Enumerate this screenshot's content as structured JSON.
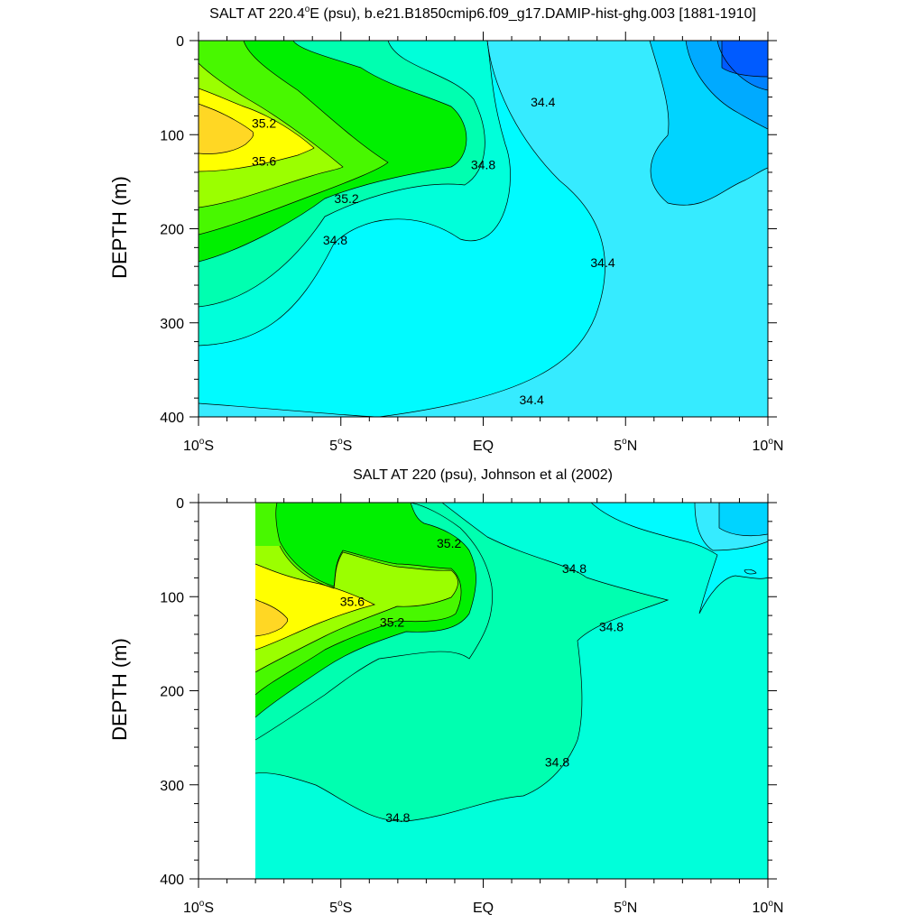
{
  "chart_data": [
    {
      "type": "contour",
      "title": "SALT AT 220.4°E (psu), b.e21.B1850cmip6.f09_g17.DAMIP-hist-ghg.003 [1881-1910]",
      "title_parts": {
        "pre": "SALT AT 220.4",
        "sup": "o",
        "post": "E (psu), b.e21.B1850cmip6.f09_g17.DAMIP-hist-ghg.003 [1881-1910]"
      },
      "xlabel": "",
      "ylabel": "DEPTH (m)",
      "xlim": [
        -10,
        10
      ],
      "ylim": [
        0,
        400
      ],
      "y_inverted": true,
      "x_ticks": [
        {
          "value": -10,
          "pre": "10",
          "sup": "o",
          "post": "S"
        },
        {
          "value": -5,
          "pre": "5",
          "sup": "o",
          "post": "S"
        },
        {
          "value": 0,
          "pre": "EQ",
          "sup": "",
          "post": ""
        },
        {
          "value": 5,
          "pre": "5",
          "sup": "o",
          "post": "N"
        },
        {
          "value": 10,
          "pre": "10",
          "sup": "o",
          "post": "N"
        }
      ],
      "y_ticks": [
        "0",
        "100",
        "200",
        "300",
        "400"
      ],
      "contour_labels": [
        {
          "text": "35.2",
          "lat": -7.7,
          "depth": 88
        },
        {
          "text": "35.6",
          "lat": -7.7,
          "depth": 128
        },
        {
          "text": "35.2",
          "lat": -4.8,
          "depth": 168
        },
        {
          "text": "34.8",
          "lat": -5.2,
          "depth": 212
        },
        {
          "text": "34.8",
          "lat": 0.0,
          "depth": 132
        },
        {
          "text": "34.4",
          "lat": 2.1,
          "depth": 65
        },
        {
          "text": "34.4",
          "lat": 4.2,
          "depth": 236
        },
        {
          "text": "34.4",
          "lat": 1.7,
          "depth": 382
        }
      ]
    },
    {
      "type": "contour",
      "title": "SALT AT 220 (psu), Johnson et al (2002)",
      "title_parts": {
        "pre": "SALT AT 220 (psu), Johnson et al (2002)",
        "sup": "",
        "post": ""
      },
      "xlabel": "",
      "ylabel": "DEPTH (m)",
      "xlim": [
        -10,
        10
      ],
      "ylim": [
        0,
        400
      ],
      "y_inverted": true,
      "x_ticks": [
        {
          "value": -10,
          "pre": "10",
          "sup": "o",
          "post": "S"
        },
        {
          "value": -5,
          "pre": "5",
          "sup": "o",
          "post": "S"
        },
        {
          "value": 0,
          "pre": "EQ",
          "sup": "",
          "post": ""
        },
        {
          "value": 5,
          "pre": "5",
          "sup": "o",
          "post": "N"
        },
        {
          "value": 10,
          "pre": "10",
          "sup": "o",
          "post": "N"
        }
      ],
      "y_ticks": [
        "0",
        "100",
        "200",
        "300",
        "400"
      ],
      "contour_labels": [
        {
          "text": "35.2",
          "lat": -1.2,
          "depth": 43
        },
        {
          "text": "35.6",
          "lat": -4.6,
          "depth": 105
        },
        {
          "text": "35.2",
          "lat": -3.2,
          "depth": 127
        },
        {
          "text": "34.8",
          "lat": 3.2,
          "depth": 70
        },
        {
          "text": "34.8",
          "lat": 4.5,
          "depth": 132
        },
        {
          "text": "34.8",
          "lat": 2.6,
          "depth": 276
        },
        {
          "text": "34.8",
          "lat": -3.0,
          "depth": 335
        }
      ]
    }
  ],
  "colors": {
    "c_33_8": "#005bff",
    "c_34_0": "#00aaff",
    "c_34_2": "#00d4ff",
    "c_34_4": "#36ebff",
    "c_34_6": "#00fbff",
    "c_34_8": "#00ffda",
    "c_35_0": "#00ffb0",
    "c_35_2": "#00f000",
    "c_35_4": "#9bff00",
    "c_35_6": "#ffff00",
    "c_35_8": "#ffd724"
  }
}
